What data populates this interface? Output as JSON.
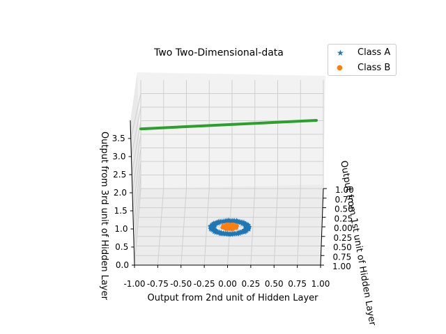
{
  "chart_data": {
    "type": "scatter",
    "title": "Two Two-Dimensional-data",
    "xlabel": "Output from 1st unit of Hidden Layer",
    "ylabel": "Output from 2nd unit of Hidden Layer",
    "zlabel": "Output from 3rd unit of Hidden Layer",
    "x_ticks": [
      "1.00",
      "0.75",
      "0.50",
      "0.25",
      "0.00",
      "0.25",
      "0.50",
      "0.75",
      "1.00"
    ],
    "y_ticks": [
      "-1.00",
      "-0.75",
      "-0.50",
      "-0.25",
      "0.00",
      "0.25",
      "0.50",
      "0.75",
      "1.00"
    ],
    "z_ticks": [
      "0.0",
      "0.5",
      "1.0",
      "1.5",
      "2.0",
      "2.5",
      "3.0",
      "3.5"
    ],
    "xlim": [
      -1,
      1
    ],
    "ylim": [
      -1,
      1
    ],
    "zlim": [
      0,
      4
    ],
    "grid": true,
    "legend_position": "top-right",
    "series": [
      {
        "name": "Class A",
        "marker": "star",
        "color": "#1f77b4",
        "shape": "ring",
        "center": [
          0,
          0
        ],
        "radius": [
          0.2,
          0.25
        ]
      },
      {
        "name": "Class B",
        "marker": "dot",
        "color": "#ff7f0e",
        "shape": "disc",
        "center": [
          0,
          0
        ],
        "radius": [
          0,
          0.1
        ]
      },
      {
        "name": "",
        "marker": "line",
        "color": "#2ca02c",
        "shape": "line",
        "from": [
          -1,
          -1,
          2.2
        ],
        "to": [
          1,
          1,
          4
        ]
      }
    ],
    "legend": [
      {
        "label": "Class A",
        "marker": "★",
        "color": "#1f77b4"
      },
      {
        "label": "Class B",
        "marker": "●",
        "color": "#ff7f0e"
      }
    ]
  }
}
